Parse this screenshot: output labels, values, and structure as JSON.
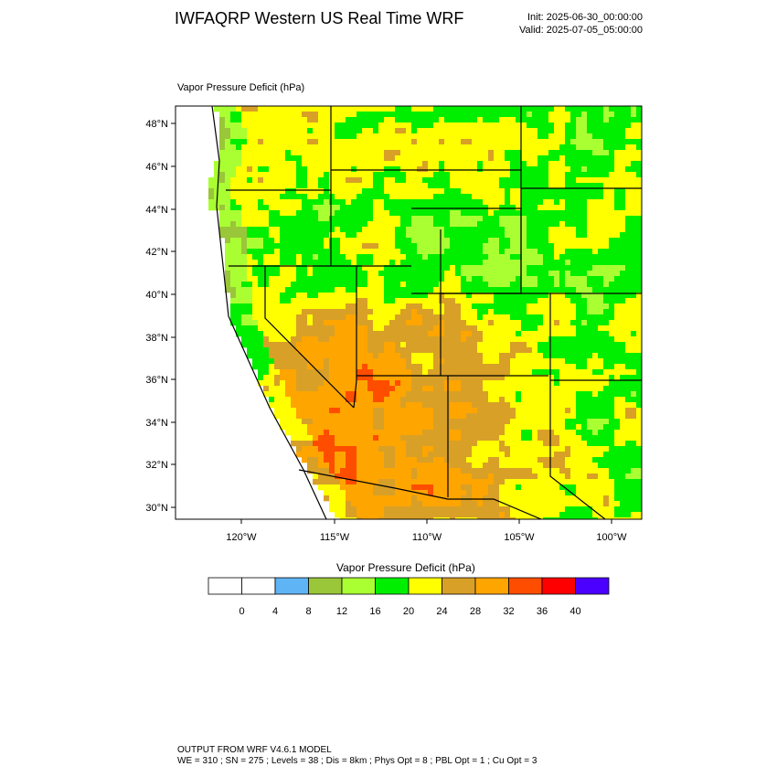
{
  "header": {
    "title": "IWFAQRP Western US Real Time WRF",
    "init": "Init: 2025-06-30_00:00:00",
    "valid": "Valid: 2025-07-05_05:00:00"
  },
  "map": {
    "field_label": "Vapor Pressure Deficit   (hPa)",
    "lat_labels": [
      "48°N",
      "46°N",
      "44°N",
      "42°N",
      "40°N",
      "38°N",
      "36°N",
      "34°N",
      "32°N",
      "30°N"
    ],
    "lon_labels": [
      "120°W",
      "115°W",
      "110°W",
      "105°W",
      "100°W"
    ]
  },
  "colorbar": {
    "title": "Vapor Pressure Deficit  (hPa)",
    "levels": [
      "0",
      "4",
      "8",
      "12",
      "16",
      "20",
      "24",
      "28",
      "32",
      "36",
      "40"
    ],
    "colors": [
      "#ffffff",
      "#ffffff",
      "#5fb4f5",
      "#9ac639",
      "#aaff33",
      "#00ee00",
      "#ffff00",
      "#d8a027",
      "#ffa500",
      "#ff4d00",
      "#ff0000",
      "#4b00ff"
    ]
  },
  "footer": {
    "line1": "OUTPUT FROM WRF V4.6.1 MODEL",
    "line2": "WE = 310 ; SN = 275 ; Levels = 38 ; Dis = 8km ; Phys Opt = 8 ; PBL Opt = 1 ; Cu Opt = 3"
  }
}
